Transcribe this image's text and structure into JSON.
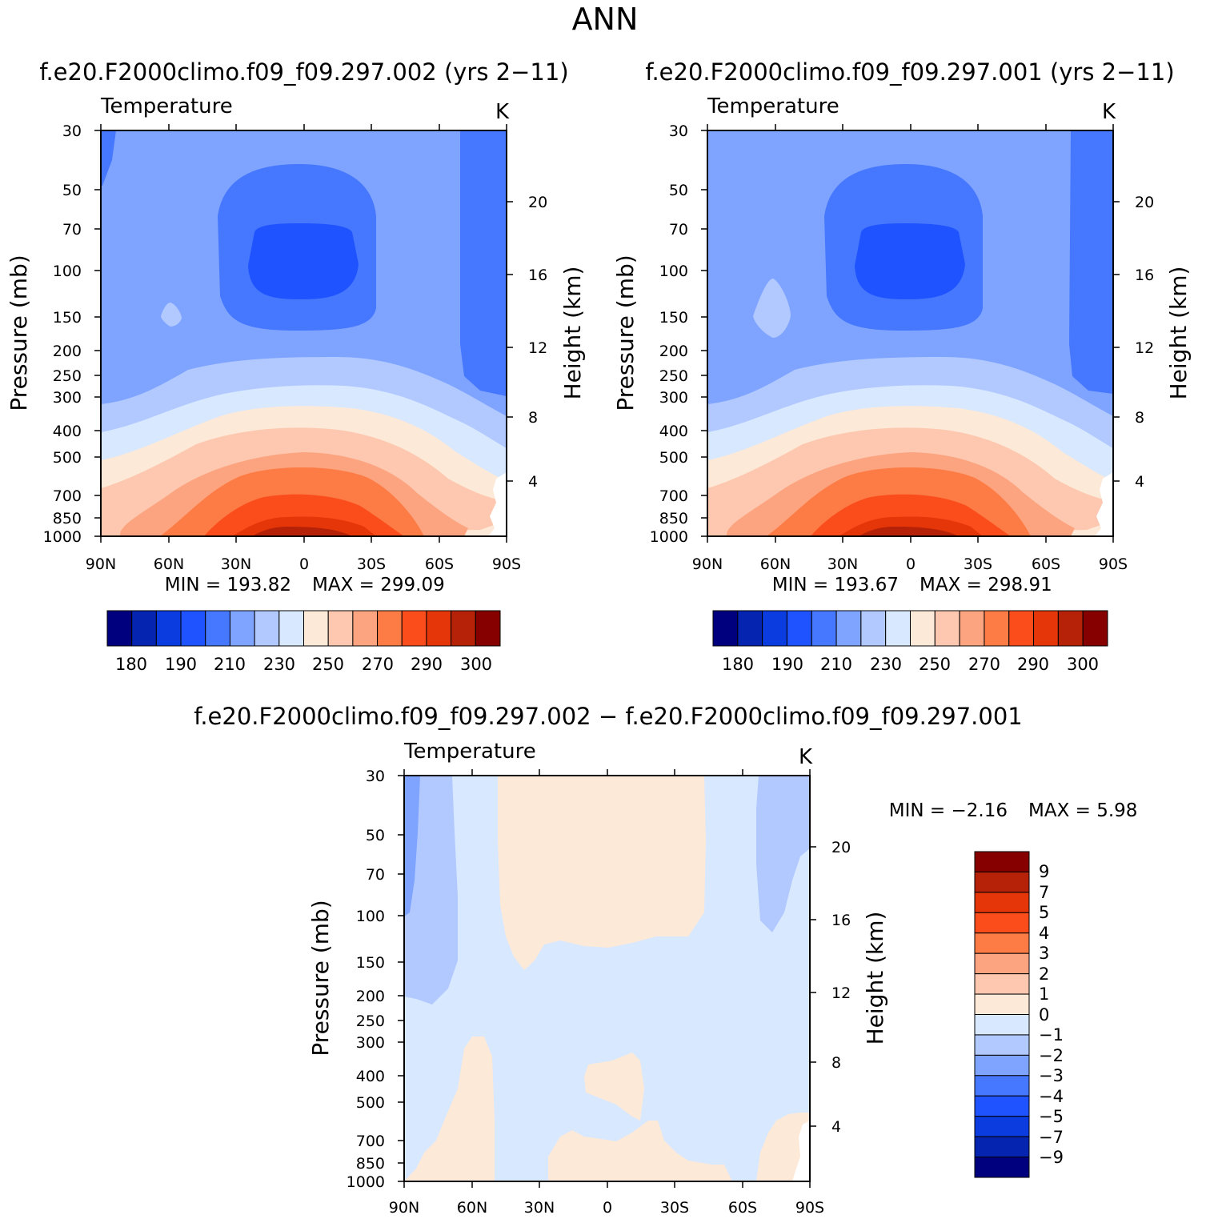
{
  "figure": {
    "title": "ANN",
    "panel_titles": [
      "f.e20.F2000climo.f09_f09.297.002 (yrs 2−11)",
      "f.e20.F2000climo.f09_f09.297.001 (yrs 2−11)"
    ],
    "diff_title": "f.e20.F2000climo.f09_f09.297.002 − f.e20.F2000climo.f09_f09.297.001"
  },
  "chart_data": [
    {
      "type": "contour",
      "variable": "Temperature",
      "units": "K",
      "ylabel": "Pressure (mb)",
      "ylabel_right": "Height (km)",
      "xticks": [
        "90N",
        "60N",
        "30N",
        "0",
        "30S",
        "60S",
        "90S"
      ],
      "yticks": [
        "30",
        "50",
        "70",
        "100",
        "150",
        "200",
        "250",
        "300",
        "400",
        "500",
        "700",
        "850",
        "1000"
      ],
      "yticks_right": [
        "20",
        "16",
        "12",
        "8",
        "4"
      ],
      "min_label": "MIN = 193.82",
      "max_label": "MAX = 299.09",
      "min": 193.82,
      "max": 299.09,
      "colorbar_labels": [
        "180",
        "190",
        "210",
        "230",
        "250",
        "270",
        "290",
        "300"
      ]
    },
    {
      "type": "contour",
      "variable": "Temperature",
      "units": "K",
      "ylabel": "Pressure (mb)",
      "ylabel_right": "Height (km)",
      "xticks": [
        "90N",
        "60N",
        "30N",
        "0",
        "30S",
        "60S",
        "90S"
      ],
      "yticks": [
        "30",
        "50",
        "70",
        "100",
        "150",
        "200",
        "250",
        "300",
        "400",
        "500",
        "700",
        "850",
        "1000"
      ],
      "yticks_right": [
        "20",
        "16",
        "12",
        "8",
        "4"
      ],
      "min_label": "MIN = 193.67",
      "max_label": "MAX = 298.91",
      "min": 193.67,
      "max": 298.91,
      "colorbar_labels": [
        "180",
        "190",
        "210",
        "230",
        "250",
        "270",
        "290",
        "300"
      ]
    },
    {
      "type": "contour",
      "variable": "Temperature",
      "units": "K",
      "ylabel": "Pressure (mb)",
      "ylabel_right": "Height (km)",
      "xticks": [
        "90N",
        "60N",
        "30N",
        "0",
        "30S",
        "60S",
        "90S"
      ],
      "yticks": [
        "30",
        "50",
        "70",
        "100",
        "150",
        "200",
        "250",
        "300",
        "400",
        "500",
        "700",
        "850",
        "1000"
      ],
      "yticks_right": [
        "20",
        "16",
        "12",
        "8",
        "4"
      ],
      "min_label": "MIN = −2.16",
      "max_label": "MAX = 5.98",
      "min": -2.16,
      "max": 5.98,
      "colorbar_labels": [
        "9",
        "7",
        "5",
        "4",
        "3",
        "2",
        "1",
        "0",
        "−1",
        "−2",
        "−3",
        "−4",
        "−5",
        "−7",
        "−9"
      ]
    }
  ],
  "colors": {
    "levels": [
      "#00007f",
      "#0524b0",
      "#0b3ce0",
      "#1e53ff",
      "#4677ff",
      "#7fa4ff",
      "#b1c9ff",
      "#d8e8ff",
      "#fde9d8",
      "#fdc8af",
      "#fca47f",
      "#fd7b44",
      "#fb4d1c",
      "#e53609",
      "#b52207",
      "#860000"
    ]
  }
}
